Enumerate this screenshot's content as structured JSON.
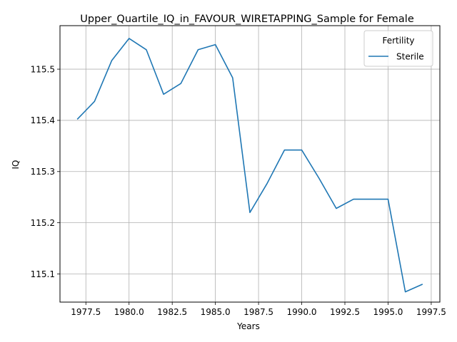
{
  "chart_data": {
    "type": "line",
    "title": "Upper_Quartile_IQ_in_FAVOUR_WIRETAPPING_Sample for Female",
    "xlabel": "Years",
    "ylabel": "IQ",
    "xlim": [
      1976.0,
      1998.0
    ],
    "ylim": [
      115.045,
      115.585
    ],
    "x_ticks": [
      1977.5,
      1980.0,
      1982.5,
      1985.0,
      1987.5,
      1990.0,
      1992.5,
      1995.0,
      1997.5
    ],
    "x_tick_labels": [
      "1977.5",
      "1980.0",
      "1982.5",
      "1985.0",
      "1987.5",
      "1990.0",
      "1992.5",
      "1995.0",
      "1997.5"
    ],
    "y_ticks": [
      115.1,
      115.2,
      115.3,
      115.4,
      115.5
    ],
    "y_tick_labels": [
      "115.1",
      "115.2",
      "115.3",
      "115.4",
      "115.5"
    ],
    "grid": true,
    "legend": {
      "title": "Fertility",
      "placement": "top-right"
    },
    "series": [
      {
        "name": "Sterile",
        "color": "#1f77b4",
        "x": [
          1977,
          1978,
          1979,
          1980,
          1981,
          1982,
          1983,
          1984,
          1985,
          1986,
          1987,
          1988,
          1989,
          1990,
          1991,
          1992,
          1993,
          1994,
          1995,
          1996,
          1997
        ],
        "y": [
          115.402,
          115.437,
          115.517,
          115.56,
          115.538,
          115.451,
          115.472,
          115.538,
          115.548,
          115.483,
          115.22,
          115.277,
          115.342,
          115.342,
          115.287,
          115.228,
          115.246,
          115.246,
          115.246,
          115.065,
          115.08
        ]
      }
    ]
  }
}
